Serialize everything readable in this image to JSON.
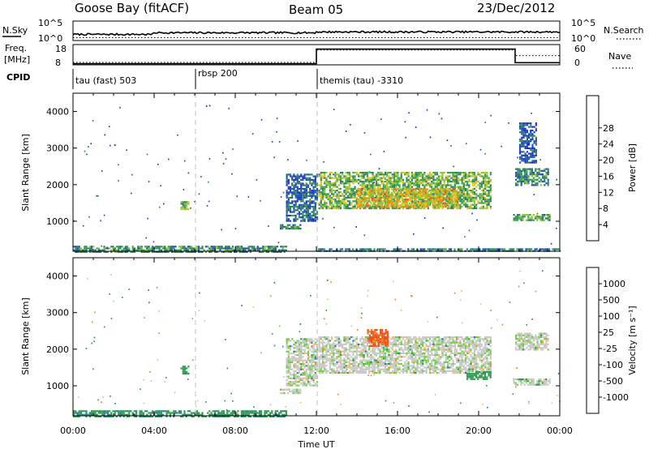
{
  "header": {
    "station": "Goose Bay (fitACF)",
    "beam": "Beam 05",
    "date": "23/Dec/2012"
  },
  "chart_data": [
    {
      "type": "line",
      "panel": "noise",
      "left_label": "N.Sky",
      "right_label": "N.Search",
      "left_ticks": [
        "10^5",
        "10^0"
      ],
      "right_ticks": [
        "10^5",
        "10^0"
      ]
    },
    {
      "type": "line",
      "panel": "freq-nave",
      "left_label": "Freq.",
      "left_unit": "[MHz]",
      "right_label": "Nave",
      "left_ticks": [
        "18",
        "8"
      ],
      "right_ticks": [
        "60",
        "0"
      ],
      "series": [
        {
          "name": "Freq.",
          "x_hours": [
            0,
            12,
            12,
            21.8,
            21.8,
            24
          ],
          "values": [
            8.6,
            8.6,
            16.5,
            16.5,
            9.2,
            9.2
          ]
        },
        {
          "name": "Nave",
          "x_hours": [
            0,
            12,
            12,
            21.8,
            21.8,
            24
          ],
          "values": [
            8,
            8,
            48,
            48,
            30,
            30
          ]
        }
      ]
    },
    {
      "type": "table",
      "panel": "cpid",
      "label": "CPID",
      "segments": [
        {
          "text": "tau (fast) 503",
          "start_hour": 0
        },
        {
          "text": "rbsp 200",
          "start_hour": 6
        },
        {
          "text": "themis (tau) -3310",
          "start_hour": 12
        }
      ]
    },
    {
      "type": "heatmap",
      "panel": "power",
      "ylabel": "Slant Range [km]",
      "yticks": [
        "1000",
        "2000",
        "3000",
        "4000"
      ],
      "ylim": [
        180,
        4500
      ],
      "colorbar_label": "Power [dB]",
      "colorbar_ticks": [
        "4",
        "8",
        "12",
        "16",
        "20",
        "24",
        "28"
      ],
      "colorbar_colors": [
        "#1730d8",
        "#1f52a8",
        "#2c7d62",
        "#37a14a",
        "#8ac43a",
        "#e7c21d",
        "#f08a14",
        "#f0522a",
        "#e31818"
      ],
      "regions": [
        {
          "x": [
            0,
            10.5
          ],
          "range": [
            180,
            330
          ],
          "power_db": 10
        },
        {
          "x": [
            5.3,
            5.7
          ],
          "range": [
            1330,
            1550
          ],
          "power_db": 14
        },
        {
          "x": [
            10.2,
            11.2
          ],
          "range": [
            780,
            920
          ],
          "power_db": 9
        },
        {
          "x": [
            10.5,
            12
          ],
          "range": [
            1000,
            2300
          ],
          "power_db": 6
        },
        {
          "x": [
            12.1,
            20.6
          ],
          "range": [
            1350,
            2350
          ],
          "power_db": 14
        },
        {
          "x": [
            14,
            19
          ],
          "range": [
            1400,
            1900
          ],
          "power_db": 20
        },
        {
          "x": [
            21.7,
            23.5
          ],
          "range": [
            1050,
            1200
          ],
          "power_db": 12
        },
        {
          "x": [
            21.8,
            23.4
          ],
          "range": [
            2000,
            2450
          ],
          "power_db": 10
        },
        {
          "x": [
            22,
            22.8
          ],
          "range": [
            2600,
            3700
          ],
          "power_db": 5
        },
        {
          "x": [
            12,
            24
          ],
          "range": [
            180,
            260
          ],
          "power_db": 8
        }
      ]
    },
    {
      "type": "heatmap",
      "panel": "velocity",
      "ylabel": "Slant Range [km]",
      "xlabel": "Time UT",
      "yticks": [
        "1000",
        "2000",
        "3000",
        "4000"
      ],
      "ylim": [
        180,
        4500
      ],
      "xticks": [
        "00:00",
        "04:00",
        "08:00",
        "12:00",
        "16:00",
        "20:00",
        "00:00"
      ],
      "xlim_hours": [
        0,
        24
      ],
      "colorbar_label": "Velocity [m s⁻¹]",
      "colorbar_ticks": [
        "1000",
        "500",
        "100",
        "25",
        "-25",
        "-100",
        "-500",
        "-1000"
      ],
      "colorbar_colors": [
        "#1a3fbf",
        "#2a78a0",
        "#2f9a50",
        "#6ccf3a",
        "#c8c8c8",
        "#ffb36b",
        "#f08214",
        "#f04e14",
        "#e31818"
      ],
      "regions": [
        {
          "x": [
            0,
            10.5
          ],
          "range": [
            180,
            330
          ],
          "velocity": 80
        },
        {
          "x": [
            5.3,
            5.7
          ],
          "range": [
            1330,
            1550
          ],
          "velocity": 60
        },
        {
          "x": [
            10.2,
            11.2
          ],
          "range": [
            780,
            920
          ],
          "velocity": 0
        },
        {
          "x": [
            10.5,
            12
          ],
          "range": [
            1000,
            2300
          ],
          "velocity": 0
        },
        {
          "x": [
            12.1,
            20.6
          ],
          "range": [
            1350,
            2350
          ],
          "velocity": 0
        },
        {
          "x": [
            14.5,
            15.5
          ],
          "range": [
            2100,
            2550
          ],
          "velocity": -600
        },
        {
          "x": [
            19.4,
            20.6
          ],
          "range": [
            1200,
            1400
          ],
          "velocity": 60
        },
        {
          "x": [
            21.7,
            23.5
          ],
          "range": [
            1050,
            1200
          ],
          "velocity": 0
        },
        {
          "x": [
            21.8,
            23.4
          ],
          "range": [
            2000,
            2450
          ],
          "velocity": 0
        }
      ]
    }
  ]
}
